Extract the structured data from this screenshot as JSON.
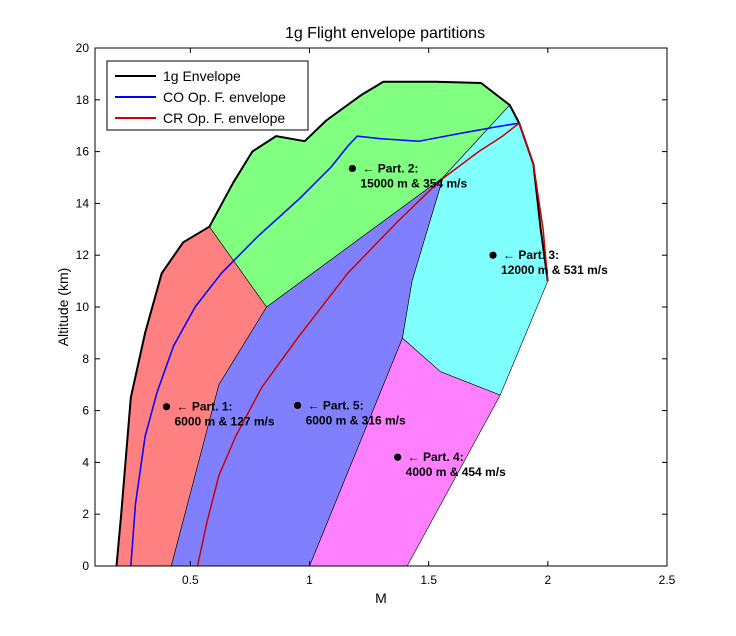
{
  "chart_data": {
    "type": "line",
    "title": "1g Flight envelope partitions",
    "xlabel": "M",
    "ylabel": "Altitude (km)",
    "xlim": [
      0.1,
      2.5
    ],
    "ylim": [
      0,
      20
    ],
    "xticks": [
      "0.5",
      "1",
      "1.5",
      "2",
      "2.5"
    ],
    "xtick_values": [
      0.5,
      1,
      1.5,
      2,
      2.5
    ],
    "yticks": [
      "0",
      "2",
      "4",
      "6",
      "8",
      "10",
      "12",
      "14",
      "16",
      "18",
      "20"
    ],
    "ytick_values": [
      0,
      2,
      4,
      6,
      8,
      10,
      12,
      14,
      16,
      18,
      20
    ],
    "legend_position": "top-left",
    "regions": [
      {
        "name": "Part. 1",
        "color": "#ff8080",
        "points": [
          [
            0.19,
            0
          ],
          [
            0.21,
            2
          ],
          [
            0.25,
            6.5
          ],
          [
            0.31,
            9
          ],
          [
            0.38,
            11.3
          ],
          [
            0.47,
            12.5
          ],
          [
            0.58,
            13.1
          ],
          [
            0.82,
            10
          ],
          [
            0.62,
            7
          ],
          [
            0.42,
            0
          ]
        ]
      },
      {
        "name": "Part. 2",
        "color": "#80ff80",
        "points": [
          [
            0.58,
            13.1
          ],
          [
            0.68,
            14.8
          ],
          [
            0.76,
            16
          ],
          [
            0.86,
            16.6
          ],
          [
            0.98,
            16.4
          ],
          [
            1.07,
            17.2
          ],
          [
            1.22,
            18.2
          ],
          [
            1.31,
            18.7
          ],
          [
            1.53,
            18.7
          ],
          [
            1.72,
            18.65
          ],
          [
            1.84,
            17.8
          ],
          [
            1.56,
            15
          ],
          [
            0.82,
            10
          ]
        ]
      },
      {
        "name": "Part. 3",
        "color": "#80ffff",
        "points": [
          [
            1.84,
            17.8
          ],
          [
            1.88,
            17.1
          ],
          [
            1.94,
            15.5
          ],
          [
            1.97,
            13
          ],
          [
            2.0,
            11
          ],
          [
            1.8,
            6.6
          ],
          [
            1.55,
            7.5
          ],
          [
            1.39,
            8.8
          ],
          [
            1.43,
            11
          ],
          [
            1.56,
            15
          ]
        ]
      },
      {
        "name": "Part. 4",
        "color": "#ff80ff",
        "points": [
          [
            1.39,
            8.8
          ],
          [
            1.55,
            7.5
          ],
          [
            1.8,
            6.6
          ],
          [
            1.41,
            0
          ],
          [
            1.0,
            0
          ]
        ]
      },
      {
        "name": "Part. 5",
        "color": "#8080ff",
        "points": [
          [
            0.82,
            10
          ],
          [
            1.56,
            15
          ],
          [
            1.43,
            11
          ],
          [
            1.39,
            8.8
          ],
          [
            1.0,
            0
          ],
          [
            0.42,
            0
          ],
          [
            0.62,
            7
          ]
        ]
      }
    ],
    "series": [
      {
        "name": "1g Envelope",
        "color": "#000000",
        "width": 2,
        "x": [
          0.19,
          0.21,
          0.25,
          0.31,
          0.38,
          0.47,
          0.58,
          0.68,
          0.76,
          0.86,
          0.98,
          1.07,
          1.22,
          1.31,
          1.53,
          1.72,
          1.84,
          1.88,
          1.94,
          1.97,
          2.0
        ],
        "y": [
          0,
          2,
          6.5,
          9,
          11.3,
          12.5,
          13.1,
          14.8,
          16,
          16.6,
          16.4,
          17.2,
          18.2,
          18.7,
          18.7,
          18.65,
          17.8,
          17.1,
          15.5,
          13,
          11
        ]
      },
      {
        "name": "CO Op. F. envelope",
        "color": "#0000ff",
        "width": 1.5,
        "x": [
          0.25,
          0.27,
          0.31,
          0.36,
          0.43,
          0.52,
          0.63,
          0.78,
          0.96,
          1.09,
          1.16,
          1.2,
          1.3,
          1.46,
          1.63,
          1.78,
          1.88
        ],
        "y": [
          0,
          2.4,
          5,
          6.7,
          8.5,
          10,
          11.3,
          12.7,
          14.2,
          15.4,
          16.2,
          16.6,
          16.5,
          16.4,
          16.7,
          16.95,
          17.1
        ]
      },
      {
        "name": "CR Op. F. envelope",
        "color": "#cc0000",
        "width": 1.5,
        "x": [
          0.53,
          0.57,
          0.62,
          0.69,
          0.8,
          0.95,
          1.16,
          1.37,
          1.55,
          1.71,
          1.81,
          1.88,
          1.94,
          1.98,
          2.0
        ],
        "y": [
          0,
          1.7,
          3.5,
          5,
          6.9,
          8.8,
          11.3,
          13.3,
          14.9,
          16,
          16.6,
          17.1,
          15.5,
          13,
          11
        ]
      }
    ],
    "points": [
      {
        "x": 0.4,
        "y": 6.15,
        "label": "← Part. 1:",
        "sub": "6000 m & 127 m/s"
      },
      {
        "x": 1.18,
        "y": 15.35,
        "label": "← Part. 2:",
        "sub": "15000 m & 354 m/s"
      },
      {
        "x": 1.77,
        "y": 12.0,
        "label": "← Part. 3:",
        "sub": "12000 m & 531 m/s"
      },
      {
        "x": 1.37,
        "y": 4.2,
        "label": "← Part. 4:",
        "sub": "4000 m & 454 m/s"
      },
      {
        "x": 0.95,
        "y": 6.2,
        "label": "← Part. 5:",
        "sub": "6000 m & 316 m/s"
      }
    ]
  }
}
